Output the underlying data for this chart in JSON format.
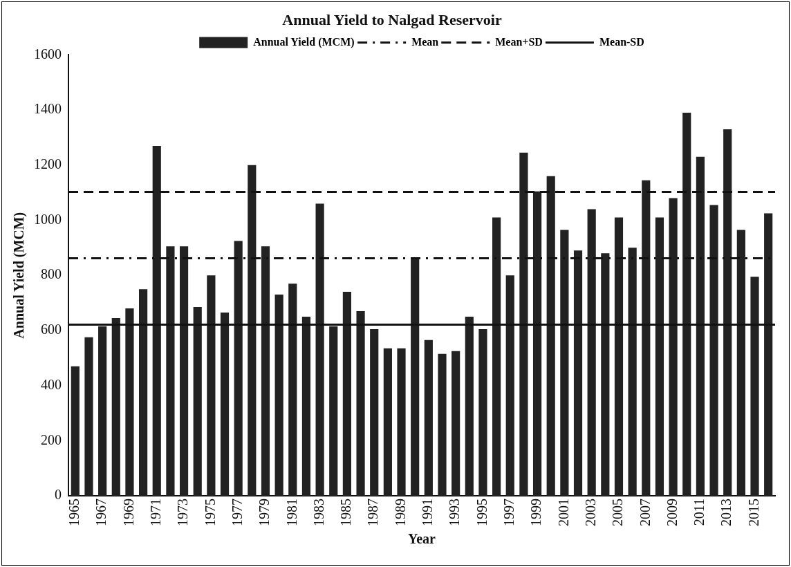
{
  "chart_data": {
    "type": "bar",
    "title": "Annual Yield to Nalgad Reservoir",
    "xlabel": "Year",
    "ylabel": "Annual Yield (MCM)",
    "categories": [
      "1965",
      null,
      "1967",
      null,
      "1969",
      null,
      "1971",
      null,
      "1973",
      null,
      "1975",
      null,
      "1977",
      null,
      "1979",
      null,
      "1981",
      null,
      "1983",
      null,
      "1985",
      null,
      "1987",
      null,
      "1989",
      null,
      "1991",
      null,
      "1993",
      null,
      "1995",
      null,
      "1997",
      null,
      "1999",
      null,
      "2001",
      null,
      "2003",
      null,
      "2005",
      null,
      "2007",
      null,
      "2009",
      null,
      "2011",
      null,
      "2013",
      null,
      "2015",
      null
    ],
    "series": [
      {
        "name": "Annual Yield (MCM)",
        "color": "#222222",
        "values": [
          470,
          575,
          615,
          645,
          680,
          750,
          1270,
          905,
          905,
          685,
          800,
          665,
          925,
          1200,
          905,
          730,
          770,
          650,
          1060,
          615,
          740,
          670,
          605,
          535,
          535,
          860,
          565,
          515,
          525,
          650,
          605,
          1010,
          800,
          1245,
          1105,
          1160,
          965,
          890,
          1040,
          880,
          1010,
          900,
          1145,
          1010,
          1080,
          1390,
          1230,
          1055,
          1330,
          965,
          795,
          1025
        ]
      }
    ],
    "ref_lines": [
      {
        "axis": "y",
        "value": 862,
        "label": "Mean",
        "color": "#111111",
        "line_style": "dashdot"
      },
      {
        "axis": "y",
        "value": 1103,
        "label": "Mean+SD",
        "color": "#111111",
        "line_style": "dashed"
      },
      {
        "axis": "y",
        "value": 621,
        "label": "Mean-SD",
        "color": "#111111",
        "line_style": "solid"
      }
    ],
    "ylim": [
      0,
      1600
    ],
    "yticks": [
      0,
      200,
      400,
      600,
      800,
      1000,
      1200,
      1400,
      1600
    ],
    "grid": false,
    "legend": "top"
  }
}
